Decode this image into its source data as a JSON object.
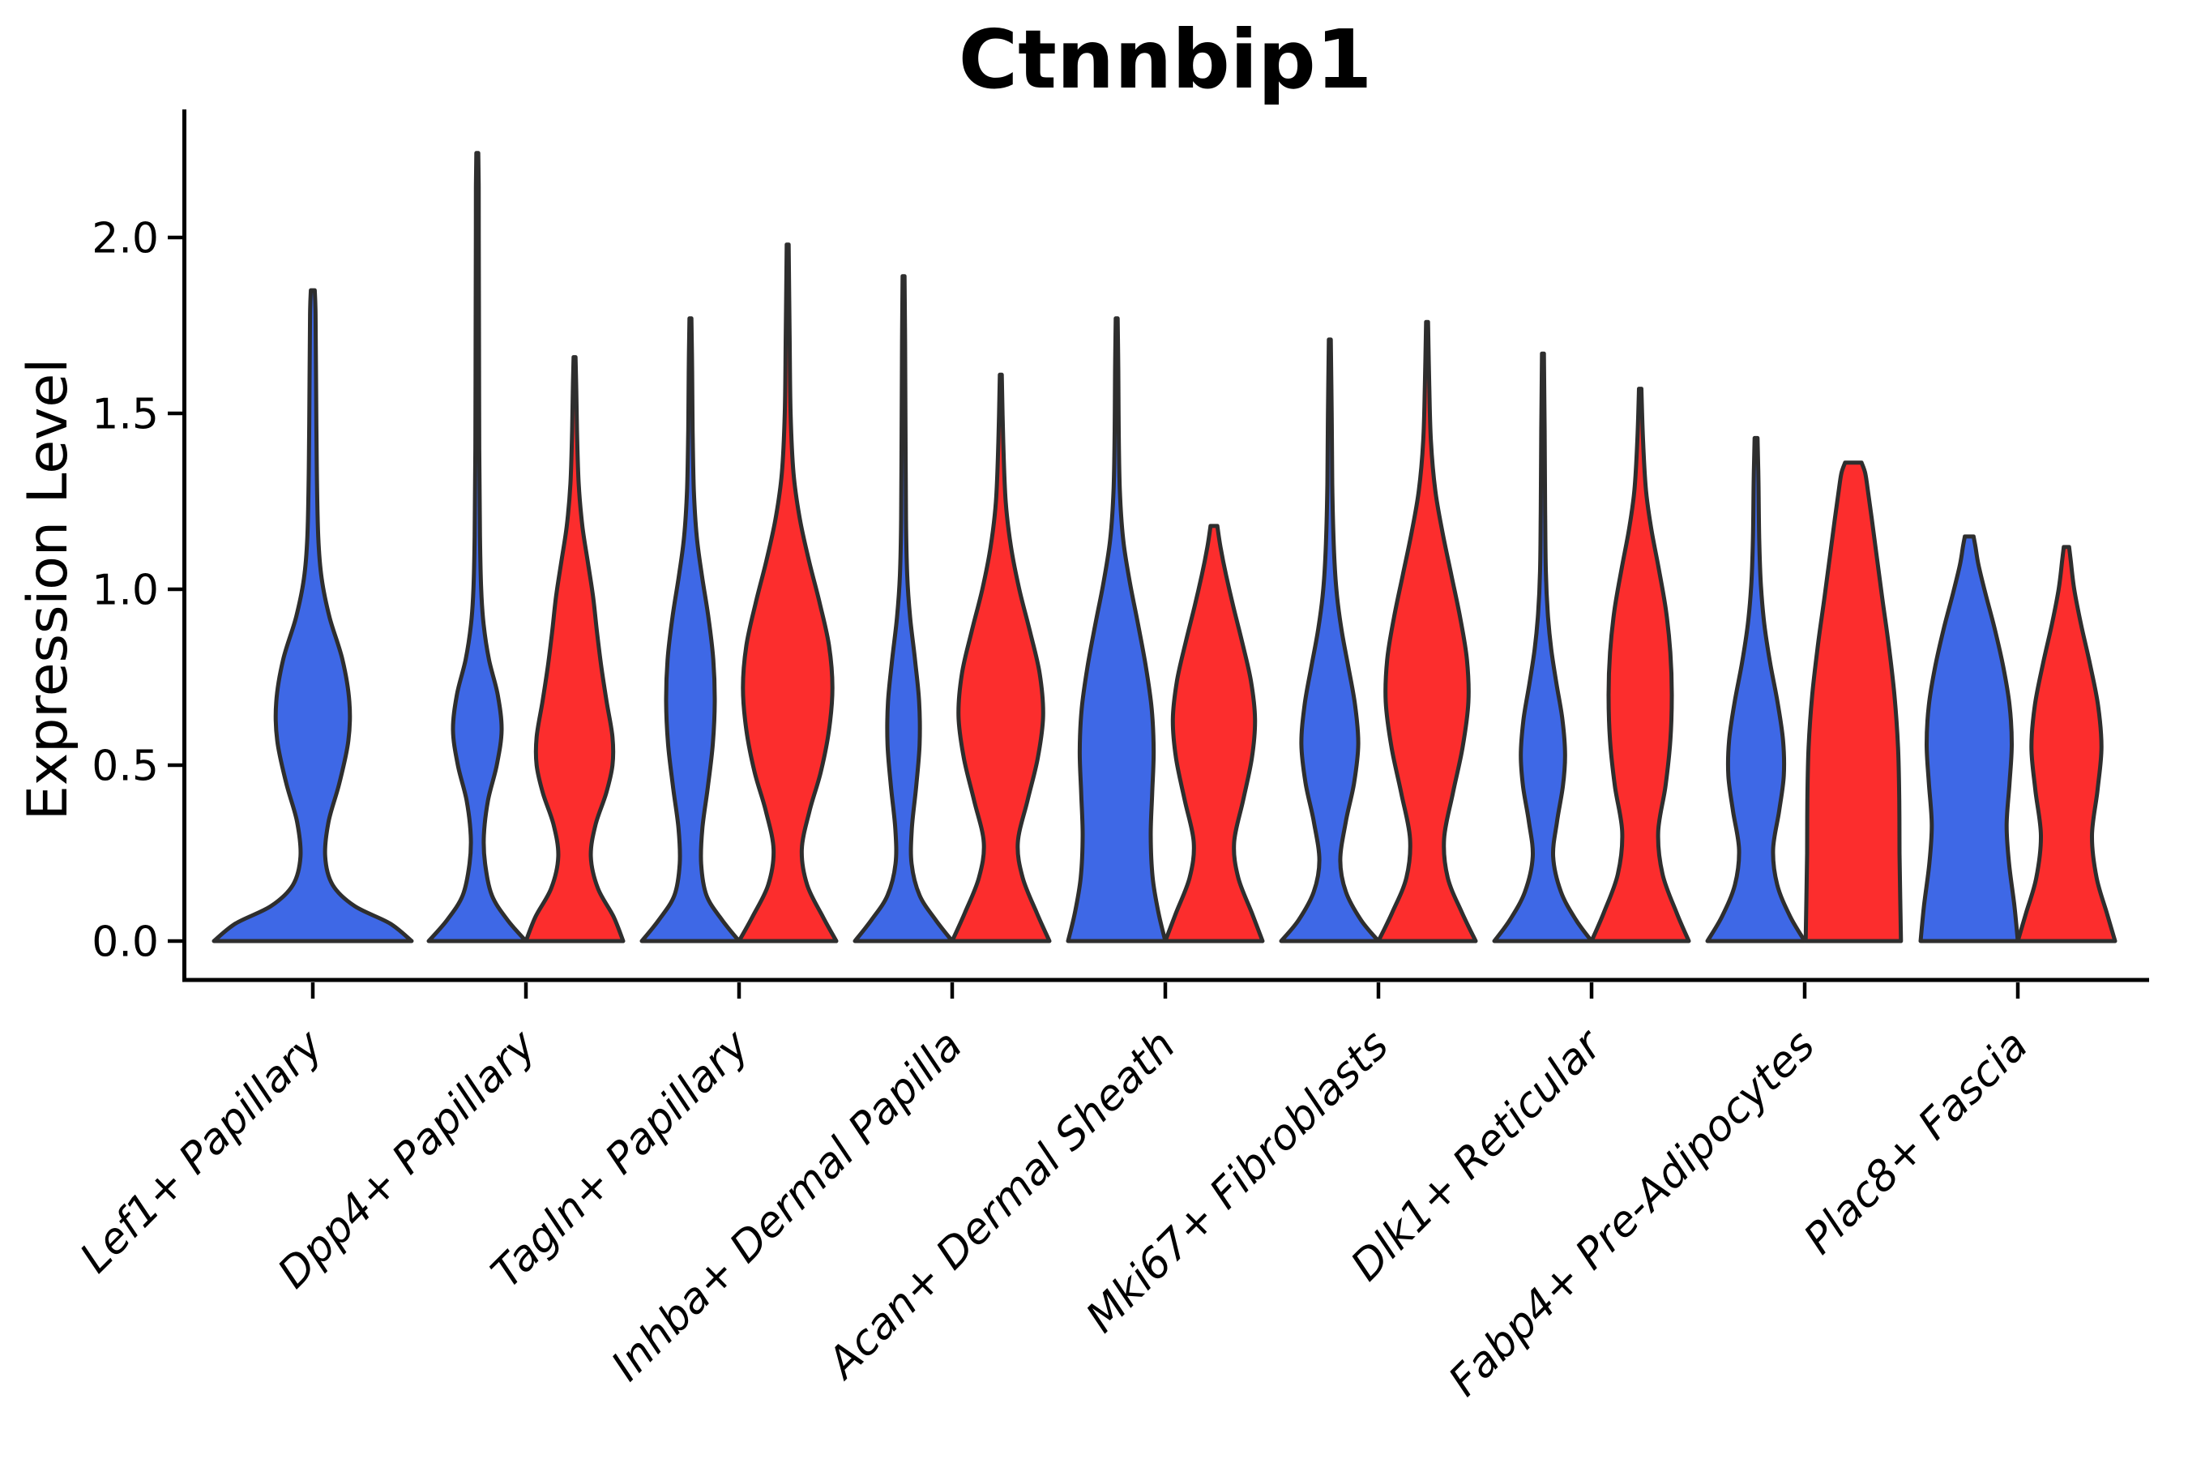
{
  "title": "Ctnnbip1",
  "y_axis": {
    "label": "Expression Level",
    "ticks": [
      {
        "value": 0.0,
        "label": "0.0"
      },
      {
        "value": 0.5,
        "label": "0.5"
      },
      {
        "value": 1.0,
        "label": "1.0"
      },
      {
        "value": 1.5,
        "label": "1.5"
      },
      {
        "value": 2.0,
        "label": "2.0"
      }
    ]
  },
  "colors": {
    "group_blue": "#3E68E6",
    "group_red": "#FC2D2D",
    "outline": "#2e2e2e",
    "axis": "#000000"
  },
  "chart_data": {
    "type": "violin",
    "title": "Ctnnbip1",
    "xlabel": "",
    "ylabel": "Expression Level",
    "yticks": [
      0.0,
      0.5,
      1.0,
      1.5,
      2.0
    ],
    "ylim": [
      -0.11,
      2.36
    ],
    "grid": false,
    "legend": "none",
    "categories": [
      "Lef1+ Papillary",
      "Dpp4+ Papillary",
      "Tagln+ Papillary",
      "Inhba+ Dermal Papilla",
      "Acan+ Dermal Sheath",
      "Mki67+ Fibroblasts",
      "Dlk1+ Reticular",
      "Fabp4+ Pre-Adipocytes",
      "Plac8+ Fascia"
    ],
    "series": [
      {
        "name": "blue",
        "color": "#3E68E6"
      },
      {
        "name": "red",
        "color": "#FC2D2D"
      }
    ],
    "violins": [
      {
        "category_index": 0,
        "group": "blue",
        "solo": true,
        "max_expression": 1.85,
        "profile": [
          [
            0,
            1
          ],
          [
            0.05,
            0.78
          ],
          [
            0.1,
            0.42
          ],
          [
            0.16,
            0.2
          ],
          [
            0.24,
            0.125
          ],
          [
            0.34,
            0.16
          ],
          [
            0.45,
            0.27
          ],
          [
            0.57,
            0.36
          ],
          [
            0.68,
            0.37
          ],
          [
            0.8,
            0.3
          ],
          [
            0.92,
            0.17
          ],
          [
            1.03,
            0.09
          ],
          [
            1.15,
            0.055
          ],
          [
            1.35,
            0.04
          ],
          [
            1.6,
            0.033
          ],
          [
            1.78,
            0.028
          ],
          [
            1.85,
            0.02
          ]
        ]
      },
      {
        "category_index": 1,
        "group": "blue",
        "solo": false,
        "max_expression": 2.24,
        "profile": [
          [
            0,
            1
          ],
          [
            0.06,
            0.62
          ],
          [
            0.13,
            0.3
          ],
          [
            0.22,
            0.16
          ],
          [
            0.3,
            0.135
          ],
          [
            0.4,
            0.22
          ],
          [
            0.5,
            0.4
          ],
          [
            0.6,
            0.5
          ],
          [
            0.7,
            0.42
          ],
          [
            0.8,
            0.24
          ],
          [
            0.9,
            0.13
          ],
          [
            1.0,
            0.08
          ],
          [
            1.15,
            0.055
          ],
          [
            1.4,
            0.04
          ],
          [
            1.7,
            0.035
          ],
          [
            2.0,
            0.03
          ],
          [
            2.15,
            0.028
          ],
          [
            2.24,
            0.02
          ]
        ]
      },
      {
        "category_index": 1,
        "group": "red",
        "solo": false,
        "max_expression": 1.66,
        "profile": [
          [
            0,
            1
          ],
          [
            0.07,
            0.8
          ],
          [
            0.15,
            0.48
          ],
          [
            0.24,
            0.335
          ],
          [
            0.33,
            0.43
          ],
          [
            0.42,
            0.65
          ],
          [
            0.5,
            0.78
          ],
          [
            0.58,
            0.78
          ],
          [
            0.68,
            0.66
          ],
          [
            0.78,
            0.55
          ],
          [
            0.88,
            0.46
          ],
          [
            0.98,
            0.38
          ],
          [
            1.08,
            0.27
          ],
          [
            1.18,
            0.16
          ],
          [
            1.3,
            0.085
          ],
          [
            1.45,
            0.05
          ],
          [
            1.57,
            0.035
          ],
          [
            1.66,
            0.02
          ]
        ]
      },
      {
        "category_index": 2,
        "group": "blue",
        "solo": false,
        "max_expression": 1.77,
        "profile": [
          [
            0,
            1
          ],
          [
            0.06,
            0.65
          ],
          [
            0.13,
            0.33
          ],
          [
            0.22,
            0.22
          ],
          [
            0.32,
            0.245
          ],
          [
            0.44,
            0.36
          ],
          [
            0.56,
            0.46
          ],
          [
            0.68,
            0.5
          ],
          [
            0.8,
            0.47
          ],
          [
            0.92,
            0.37
          ],
          [
            1.04,
            0.235
          ],
          [
            1.15,
            0.13
          ],
          [
            1.28,
            0.07
          ],
          [
            1.45,
            0.045
          ],
          [
            1.62,
            0.035
          ],
          [
            1.77,
            0.02
          ]
        ]
      },
      {
        "category_index": 2,
        "group": "red",
        "solo": false,
        "max_expression": 1.98,
        "profile": [
          [
            0,
            1
          ],
          [
            0.07,
            0.72
          ],
          [
            0.16,
            0.4
          ],
          [
            0.26,
            0.29
          ],
          [
            0.37,
            0.45
          ],
          [
            0.48,
            0.68
          ],
          [
            0.6,
            0.85
          ],
          [
            0.72,
            0.92
          ],
          [
            0.84,
            0.85
          ],
          [
            0.96,
            0.66
          ],
          [
            1.08,
            0.44
          ],
          [
            1.2,
            0.25
          ],
          [
            1.33,
            0.12
          ],
          [
            1.5,
            0.06
          ],
          [
            1.72,
            0.04
          ],
          [
            1.98,
            0.02
          ]
        ]
      },
      {
        "category_index": 3,
        "group": "blue",
        "solo": false,
        "max_expression": 1.89,
        "profile": [
          [
            0,
            1
          ],
          [
            0.06,
            0.66
          ],
          [
            0.13,
            0.33
          ],
          [
            0.22,
            0.165
          ],
          [
            0.32,
            0.17
          ],
          [
            0.44,
            0.26
          ],
          [
            0.56,
            0.33
          ],
          [
            0.68,
            0.32
          ],
          [
            0.8,
            0.235
          ],
          [
            0.92,
            0.135
          ],
          [
            1.04,
            0.075
          ],
          [
            1.2,
            0.05
          ],
          [
            1.45,
            0.04
          ],
          [
            1.7,
            0.032
          ],
          [
            1.89,
            0.02
          ]
        ]
      },
      {
        "category_index": 3,
        "group": "red",
        "solo": false,
        "max_expression": 1.61,
        "profile": [
          [
            0,
            1
          ],
          [
            0.08,
            0.74
          ],
          [
            0.18,
            0.45
          ],
          [
            0.28,
            0.35
          ],
          [
            0.4,
            0.55
          ],
          [
            0.52,
            0.76
          ],
          [
            0.64,
            0.87
          ],
          [
            0.76,
            0.8
          ],
          [
            0.88,
            0.6
          ],
          [
            1.0,
            0.38
          ],
          [
            1.12,
            0.21
          ],
          [
            1.25,
            0.1
          ],
          [
            1.42,
            0.05
          ],
          [
            1.61,
            0.02
          ]
        ]
      },
      {
        "category_index": 4,
        "group": "blue",
        "solo": false,
        "max_expression": 1.77,
        "profile": [
          [
            0,
            1
          ],
          [
            0.08,
            0.86
          ],
          [
            0.18,
            0.74
          ],
          [
            0.3,
            0.7
          ],
          [
            0.42,
            0.73
          ],
          [
            0.54,
            0.76
          ],
          [
            0.66,
            0.72
          ],
          [
            0.78,
            0.6
          ],
          [
            0.9,
            0.44
          ],
          [
            1.02,
            0.27
          ],
          [
            1.14,
            0.135
          ],
          [
            1.28,
            0.065
          ],
          [
            1.45,
            0.042
          ],
          [
            1.62,
            0.034
          ],
          [
            1.77,
            0.02
          ]
        ]
      },
      {
        "category_index": 4,
        "group": "red",
        "solo": false,
        "max_expression": 1.18,
        "profile": [
          [
            0,
            1
          ],
          [
            0.08,
            0.78
          ],
          [
            0.18,
            0.5
          ],
          [
            0.28,
            0.415
          ],
          [
            0.4,
            0.6
          ],
          [
            0.52,
            0.78
          ],
          [
            0.63,
            0.845
          ],
          [
            0.74,
            0.76
          ],
          [
            0.85,
            0.58
          ],
          [
            0.95,
            0.4
          ],
          [
            1.04,
            0.25
          ],
          [
            1.12,
            0.135
          ],
          [
            1.18,
            0.07
          ]
        ]
      },
      {
        "category_index": 5,
        "group": "blue",
        "solo": false,
        "max_expression": 1.71,
        "profile": [
          [
            0,
            1
          ],
          [
            0.06,
            0.64
          ],
          [
            0.14,
            0.33
          ],
          [
            0.23,
            0.215
          ],
          [
            0.34,
            0.33
          ],
          [
            0.45,
            0.5
          ],
          [
            0.56,
            0.585
          ],
          [
            0.67,
            0.52
          ],
          [
            0.78,
            0.38
          ],
          [
            0.89,
            0.235
          ],
          [
            1.0,
            0.135
          ],
          [
            1.13,
            0.08
          ],
          [
            1.3,
            0.05
          ],
          [
            1.5,
            0.038
          ],
          [
            1.71,
            0.02
          ]
        ]
      },
      {
        "category_index": 5,
        "group": "red",
        "solo": false,
        "max_expression": 1.76,
        "profile": [
          [
            0,
            1
          ],
          [
            0.08,
            0.72
          ],
          [
            0.18,
            0.425
          ],
          [
            0.29,
            0.35
          ],
          [
            0.42,
            0.53
          ],
          [
            0.55,
            0.73
          ],
          [
            0.68,
            0.85
          ],
          [
            0.8,
            0.82
          ],
          [
            0.92,
            0.68
          ],
          [
            1.04,
            0.5
          ],
          [
            1.16,
            0.32
          ],
          [
            1.28,
            0.17
          ],
          [
            1.42,
            0.08
          ],
          [
            1.58,
            0.045
          ],
          [
            1.76,
            0.02
          ]
        ]
      },
      {
        "category_index": 6,
        "group": "blue",
        "solo": false,
        "max_expression": 1.67,
        "profile": [
          [
            0,
            1
          ],
          [
            0.06,
            0.68
          ],
          [
            0.14,
            0.37
          ],
          [
            0.24,
            0.21
          ],
          [
            0.34,
            0.29
          ],
          [
            0.44,
            0.41
          ],
          [
            0.53,
            0.455
          ],
          [
            0.63,
            0.4
          ],
          [
            0.73,
            0.28
          ],
          [
            0.83,
            0.17
          ],
          [
            0.93,
            0.1
          ],
          [
            1.05,
            0.06
          ],
          [
            1.22,
            0.045
          ],
          [
            1.45,
            0.035
          ],
          [
            1.67,
            0.02
          ]
        ]
      },
      {
        "category_index": 6,
        "group": "red",
        "solo": false,
        "max_expression": 1.57,
        "profile": [
          [
            0,
            1
          ],
          [
            0.08,
            0.75
          ],
          [
            0.19,
            0.46
          ],
          [
            0.31,
            0.37
          ],
          [
            0.44,
            0.52
          ],
          [
            0.57,
            0.62
          ],
          [
            0.7,
            0.65
          ],
          [
            0.82,
            0.62
          ],
          [
            0.94,
            0.53
          ],
          [
            1.06,
            0.38
          ],
          [
            1.17,
            0.23
          ],
          [
            1.28,
            0.12
          ],
          [
            1.42,
            0.06
          ],
          [
            1.57,
            0.025
          ]
        ]
      },
      {
        "category_index": 7,
        "group": "blue",
        "solo": false,
        "max_expression": 1.43,
        "profile": [
          [
            0,
            1
          ],
          [
            0.07,
            0.7
          ],
          [
            0.16,
            0.435
          ],
          [
            0.26,
            0.35
          ],
          [
            0.37,
            0.475
          ],
          [
            0.47,
            0.57
          ],
          [
            0.57,
            0.555
          ],
          [
            0.68,
            0.44
          ],
          [
            0.79,
            0.29
          ],
          [
            0.9,
            0.17
          ],
          [
            1.01,
            0.1
          ],
          [
            1.14,
            0.065
          ],
          [
            1.3,
            0.05
          ],
          [
            1.43,
            0.03
          ]
        ]
      },
      {
        "category_index": 7,
        "group": "red",
        "solo": false,
        "max_expression": 1.36,
        "profile": [
          [
            0,
            0.98
          ],
          [
            0.12,
            0.965
          ],
          [
            0.25,
            0.95
          ],
          [
            0.4,
            0.945
          ],
          [
            0.55,
            0.92
          ],
          [
            0.7,
            0.845
          ],
          [
            0.85,
            0.72
          ],
          [
            0.98,
            0.59
          ],
          [
            1.1,
            0.475
          ],
          [
            1.2,
            0.38
          ],
          [
            1.28,
            0.3
          ],
          [
            1.33,
            0.245
          ],
          [
            1.36,
            0.17
          ]
        ]
      },
      {
        "category_index": 8,
        "group": "blue",
        "solo": false,
        "max_expression": 1.15,
        "profile": [
          [
            0,
            1
          ],
          [
            0.1,
            0.93
          ],
          [
            0.22,
            0.82
          ],
          [
            0.33,
            0.77
          ],
          [
            0.45,
            0.83
          ],
          [
            0.56,
            0.875
          ],
          [
            0.67,
            0.83
          ],
          [
            0.78,
            0.7
          ],
          [
            0.89,
            0.52
          ],
          [
            0.99,
            0.33
          ],
          [
            1.07,
            0.19
          ],
          [
            1.12,
            0.13
          ],
          [
            1.15,
            0.09
          ]
        ]
      },
      {
        "category_index": 8,
        "group": "red",
        "solo": false,
        "max_expression": 1.12,
        "profile": [
          [
            0,
            1
          ],
          [
            0.08,
            0.83
          ],
          [
            0.18,
            0.62
          ],
          [
            0.3,
            0.525
          ],
          [
            0.43,
            0.64
          ],
          [
            0.55,
            0.72
          ],
          [
            0.67,
            0.65
          ],
          [
            0.79,
            0.48
          ],
          [
            0.9,
            0.3
          ],
          [
            1.0,
            0.16
          ],
          [
            1.08,
            0.09
          ],
          [
            1.12,
            0.055
          ]
        ]
      }
    ]
  }
}
